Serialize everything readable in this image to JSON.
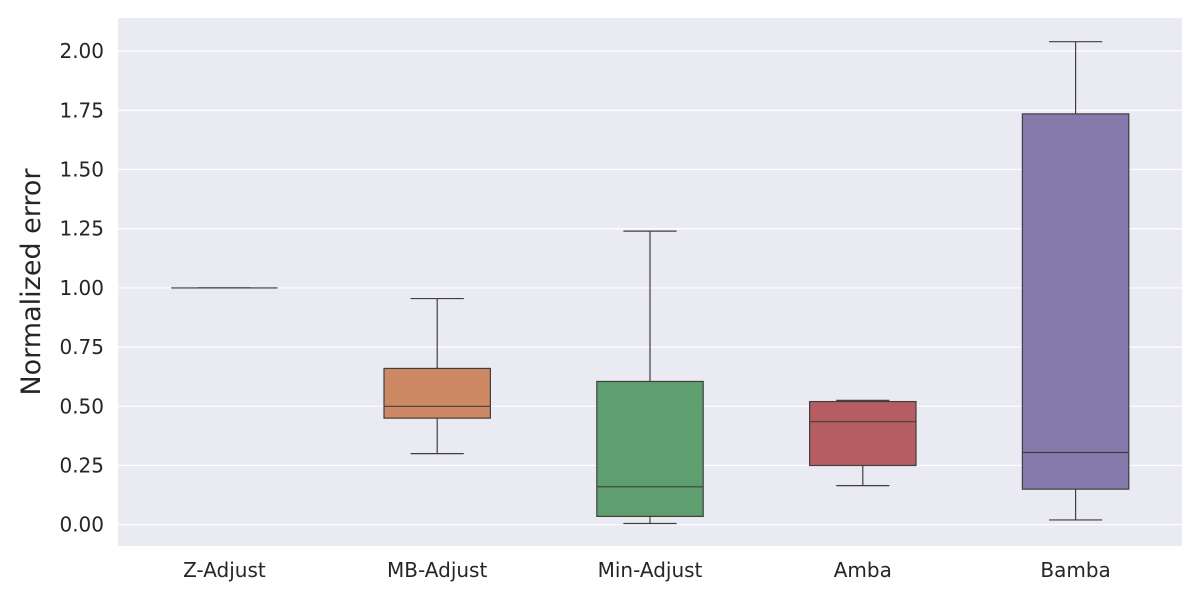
{
  "chart_data": {
    "type": "boxplot",
    "title": "",
    "xlabel": "",
    "ylabel": "Normalized error",
    "ylim": [
      -0.09,
      2.14
    ],
    "yticks": [
      0.0,
      0.25,
      0.5,
      0.75,
      1.0,
      1.25,
      1.5,
      1.75,
      2.0
    ],
    "ytick_labels": [
      "0.00",
      "0.25",
      "0.50",
      "0.75",
      "1.00",
      "1.25",
      "1.50",
      "1.75",
      "2.00"
    ],
    "grid": true,
    "legend": "none",
    "background_color": "#eaeaf2",
    "categories": [
      "Z-Adjust",
      "MB-Adjust",
      "Min-Adjust",
      "Amba",
      "Bamba"
    ],
    "boxes": [
      {
        "category": "Z-Adjust",
        "whisker_low": 1.0,
        "q1": 1.0,
        "median": 1.0,
        "q3": 1.0,
        "whisker_high": 1.0,
        "color": "#5875a4"
      },
      {
        "category": "MB-Adjust",
        "whisker_low": 0.3,
        "q1": 0.45,
        "median": 0.5,
        "q3": 0.66,
        "whisker_high": 0.955,
        "color": "#cc8963"
      },
      {
        "category": "Min-Adjust",
        "whisker_low": 0.005,
        "q1": 0.035,
        "median": 0.16,
        "q3": 0.605,
        "whisker_high": 1.24,
        "color": "#5f9e6e"
      },
      {
        "category": "Amba",
        "whisker_low": 0.165,
        "q1": 0.25,
        "median": 0.435,
        "q3": 0.52,
        "whisker_high": 0.525,
        "color": "#b55d60"
      },
      {
        "category": "Bamba",
        "whisker_low": 0.02,
        "q1": 0.15,
        "median": 0.305,
        "q3": 1.735,
        "whisker_high": 2.04,
        "color": "#857aab"
      }
    ]
  }
}
